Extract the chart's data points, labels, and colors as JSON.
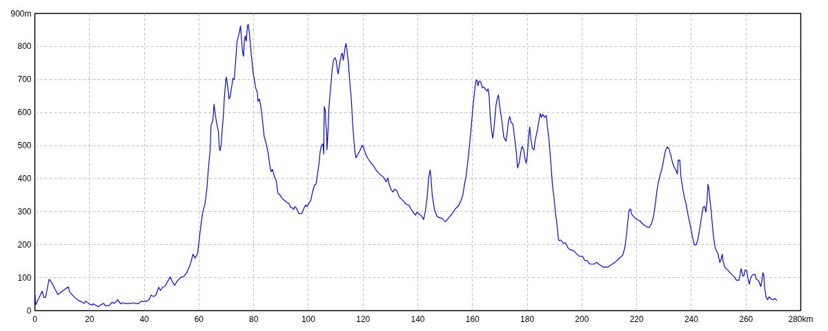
{
  "chart_data": {
    "type": "line",
    "x": [
      0.0,
      0.3,
      2.7,
      3.3,
      3.9,
      5.2,
      6.0,
      8.4,
      12.2,
      12.8,
      14.3,
      15.9,
      16.8,
      18.1,
      18.6,
      20.2,
      21.0,
      21.4,
      23.1,
      24.4,
      25.2,
      25.7,
      27.3,
      28.2,
      29.0,
      30.3,
      31.3,
      32.4,
      33.2,
      35.4,
      36.2,
      37.0,
      37.9,
      38.7,
      40.8,
      41.7,
      42.5,
      43.4,
      44.2,
      45.3,
      45.9,
      46.7,
      47.5,
      49.5,
      50.3,
      51.1,
      52.2,
      53.4,
      54.5,
      55.5,
      56.8,
      57.8,
      58.6,
      59.5,
      60.1,
      60.7,
      61.4,
      62.2,
      62.9,
      63.2,
      63.7,
      64.1,
      64.4,
      64.7,
      65.1,
      65.5,
      66.0,
      66.4,
      67.1,
      67.4,
      67.7,
      68.1,
      68.5,
      68.9,
      69.3,
      69.8,
      70.0,
      70.6,
      71.0,
      71.4,
      71.8,
      72.4,
      72.9,
      73.5,
      73.9,
      74.6,
      75.2,
      75.6,
      76.0,
      76.3,
      76.6,
      76.9,
      77.3,
      77.7,
      78.0,
      78.4,
      78.8,
      79.1,
      79.6,
      79.8,
      80.2,
      80.7,
      81.3,
      81.6,
      82.1,
      82.6,
      83.2,
      83.8,
      84.5,
      85.3,
      85.8,
      86.3,
      86.9,
      87.5,
      88.2,
      88.9,
      89.5,
      90.4,
      91.2,
      92.3,
      92.9,
      93.5,
      94.2,
      94.6,
      95.0,
      95.7,
      96.5,
      97.6,
      98.4,
      99.0,
      99.5,
      100.1,
      100.9,
      101.4,
      102.2,
      102.8,
      103.3,
      103.9,
      104.3,
      104.7,
      105.3,
      105.6,
      105.8,
      106.2,
      106.4,
      106.7,
      106.8,
      107.0,
      107.3,
      107.5,
      107.8,
      108.3,
      108.7,
      109.2,
      109.8,
      110.2,
      110.6,
      110.9,
      111.5,
      112.1,
      112.4,
      112.7,
      113.2,
      113.5,
      113.8,
      114.1,
      114.6,
      115.1,
      115.7,
      116.1,
      116.5,
      117.0,
      117.4,
      118.0,
      118.8,
      119.7,
      120.2,
      120.8,
      121.6,
      122.7,
      123.7,
      124.6,
      125.4,
      126.7,
      127.5,
      128.4,
      129.0,
      129.6,
      130.3,
      130.9,
      131.5,
      132.3,
      133.2,
      134.0,
      134.9,
      135.5,
      136.8,
      137.6,
      138.5,
      139.2,
      139.7,
      140.6,
      141.4,
      142.1,
      142.8,
      143.4,
      144.0,
      144.5,
      144.8,
      145.3,
      146.1,
      147.0,
      147.6,
      148.7,
      150.1,
      151.4,
      152.6,
      153.7,
      154.9,
      155.8,
      156.4,
      157.1,
      157.7,
      158.3,
      158.9,
      159.4,
      160.0,
      160.5,
      160.9,
      161.3,
      161.6,
      162.0,
      162.3,
      162.7,
      163.2,
      163.6,
      164.2,
      164.7,
      165.3,
      165.7,
      166.1,
      166.5,
      167.0,
      167.4,
      167.8,
      168.2,
      168.6,
      169.1,
      169.5,
      169.9,
      170.3,
      170.9,
      171.4,
      171.7,
      172.2,
      172.6,
      173.1,
      173.6,
      174.1,
      174.8,
      175.4,
      176.0,
      176.5,
      177.1,
      177.6,
      178.1,
      178.7,
      179.2,
      179.6,
      180.0,
      180.4,
      180.9,
      181.3,
      181.9,
      182.5,
      182.9,
      183.8,
      184.2,
      184.8,
      185.2,
      185.7,
      186.3,
      187.0,
      187.4,
      188.0,
      188.6,
      189.2,
      189.8,
      190.3,
      190.9,
      191.4,
      191.7,
      192.3,
      193.1,
      194.0,
      194.8,
      195.6,
      196.9,
      198.2,
      199.0,
      200.3,
      200.9,
      201.9,
      202.9,
      204.4,
      205.4,
      206.5,
      207.8,
      209.5,
      210.7,
      212.0,
      213.2,
      214.9,
      215.7,
      216.3,
      216.8,
      217.2,
      217.8,
      218.2,
      219.1,
      220.3,
      221.2,
      222.4,
      223.7,
      224.7,
      225.5,
      226.2,
      226.9,
      227.4,
      228.0,
      228.7,
      229.4,
      230.0,
      230.5,
      231.2,
      231.8,
      232.5,
      233.1,
      233.7,
      234.4,
      234.9,
      235.2,
      235.8,
      236.2,
      236.9,
      237.5,
      238.0,
      238.8,
      239.8,
      240.5,
      241.2,
      241.8,
      242.4,
      243.0,
      243.7,
      244.3,
      244.9,
      245.3,
      245.7,
      246.1,
      246.4,
      246.8,
      247.3,
      247.7,
      248.1,
      248.7,
      249.4,
      249.8,
      250.4,
      250.8,
      251.3,
      251.6,
      252.2,
      253.2,
      254.4,
      255.7,
      256.5,
      257.4,
      257.8,
      258.2,
      258.9,
      259.3,
      259.7,
      260.3,
      260.8,
      261.2,
      261.6,
      262.3,
      263.3,
      263.7,
      264.6,
      265.4,
      265.8,
      266.2,
      266.5,
      266.8,
      267.3,
      267.9,
      268.5,
      269.2,
      269.9,
      270.6,
      271.3
    ],
    "series": [
      {
        "color": "#0000ff",
        "values": [
          52,
          18,
          59,
          40,
          40,
          95,
          87,
          49,
          72,
          56,
          42,
          31,
          28,
          22,
          29,
          19,
          17,
          21,
          12,
          19,
          22,
          15,
          16,
          26,
          22,
          33,
          21,
          24,
          21,
          22,
          24,
          21,
          21,
          28,
          28,
          33,
          47,
          43,
          47,
          71,
          61,
          71,
          73,
          102,
          87,
          77,
          91,
          101,
          104,
          115,
          139,
          171,
          159,
          174,
          216,
          258,
          299,
          324,
          369,
          404,
          453,
          487,
          561,
          568,
          578,
          625,
          592,
          571,
          543,
          498,
          484,
          501,
          550,
          588,
          648,
          696,
          707,
          672,
          641,
          648,
          669,
          703,
          700,
          766,
          815,
          836,
          862,
          818,
          780,
          770,
          815,
          832,
          816,
          860,
          867,
          843,
          808,
          777,
          738,
          719,
          703,
          675,
          662,
          634,
          641,
          620,
          578,
          529,
          508,
          477,
          446,
          421,
          428,
          407,
          395,
          355,
          352,
          340,
          334,
          327,
          324,
          313,
          311,
          306,
          315,
          310,
          294,
          294,
          310,
          320,
          315,
          324,
          334,
          355,
          380,
          383,
          411,
          446,
          481,
          498,
          505,
          474,
          618,
          606,
          564,
          536,
          487,
          515,
          564,
          613,
          644,
          689,
          731,
          759,
          766,
          756,
          728,
          717,
          752,
          776,
          780,
          758,
          783,
          801,
          809,
          791,
          752,
          696,
          641,
          578,
          529,
          481,
          463,
          472,
          484,
          501,
          494,
          477,
          463,
          449,
          440,
          428,
          419,
          409,
          404,
          390,
          402,
          380,
          366,
          359,
          368,
          364,
          345,
          338,
          331,
          324,
          319,
          306,
          296,
          289,
          298,
          292,
          286,
          276,
          303,
          341,
          404,
          426,
          404,
          348,
          306,
          286,
          282,
          280,
          269,
          282,
          294,
          308,
          318,
          334,
          348,
          383,
          411,
          453,
          501,
          543,
          602,
          644,
          675,
          696,
          699,
          681,
          693,
          695,
          688,
          675,
          677,
          670,
          665,
          672,
          648,
          585,
          543,
          522,
          547,
          585,
          623,
          644,
          653,
          620,
          599,
          564,
          526,
          522,
          513,
          533,
          571,
          588,
          571,
          564,
          522,
          481,
          432,
          449,
          477,
          498,
          487,
          460,
          446,
          467,
          515,
          556,
          522,
          491,
          487,
          515,
          550,
          571,
          597,
          585,
          595,
          585,
          591,
          557,
          515,
          453,
          383,
          341,
          299,
          260,
          216,
          212,
          214,
          205,
          205,
          191,
          185,
          182,
          171,
          165,
          164,
          153,
          151,
          141,
          141,
          146,
          139,
          132,
          132,
          139,
          146,
          155,
          168,
          191,
          230,
          272,
          303,
          308,
          292,
          283,
          275,
          272,
          261,
          254,
          252,
          265,
          286,
          327,
          362,
          390,
          414,
          435,
          463,
          484,
          496,
          491,
          470,
          449,
          435,
          425,
          414,
          456,
          456,
          404,
          369,
          341,
          327,
          289,
          251,
          219,
          198,
          200,
          216,
          244,
          282,
          313,
          315,
          298,
          327,
          383,
          369,
          334,
          299,
          258,
          223,
          191,
          178,
          171,
          146,
          153,
          171,
          150,
          132,
          124,
          113,
          102,
          92,
          92,
          108,
          127,
          104,
          108,
          124,
          120,
          94,
          80,
          97,
          108,
          110,
          96,
          91,
          73,
          91,
          115,
          106,
          70,
          42,
          33,
          42,
          35,
          33,
          37,
          31
        ]
      }
    ],
    "xlim": [
      0,
      280
    ],
    "ylim": [
      0,
      900
    ],
    "xticks": [
      0,
      20,
      40,
      60,
      80,
      100,
      120,
      140,
      160,
      180,
      200,
      220,
      240,
      260,
      {
        "value": 280,
        "label": "280km"
      }
    ],
    "yticks": [
      0,
      100,
      200,
      300,
      400,
      500,
      600,
      700,
      800,
      {
        "value": 900,
        "label": "900m"
      }
    ],
    "grid": true,
    "line_style": "solid"
  }
}
